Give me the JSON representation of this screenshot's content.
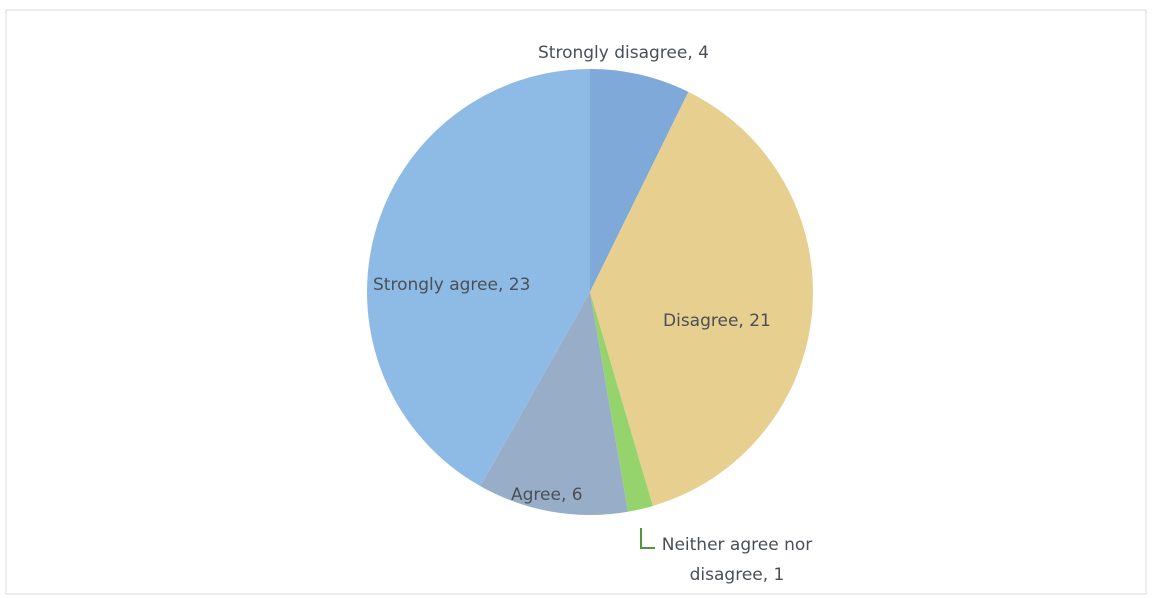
{
  "chart_data": {
    "type": "pie",
    "labels": [
      "Strongly disagree, 4",
      "Disagree, 21",
      "Neither agree nor disagree, 1",
      "Agree, 6",
      "Strongly agree, 23"
    ],
    "values": [
      4,
      21,
      1,
      6,
      23
    ],
    "colors": [
      "#7ea9d9",
      "#e6cf8f",
      "#95d46c",
      "#98aec8",
      "#8dbbe5"
    ]
  }
}
